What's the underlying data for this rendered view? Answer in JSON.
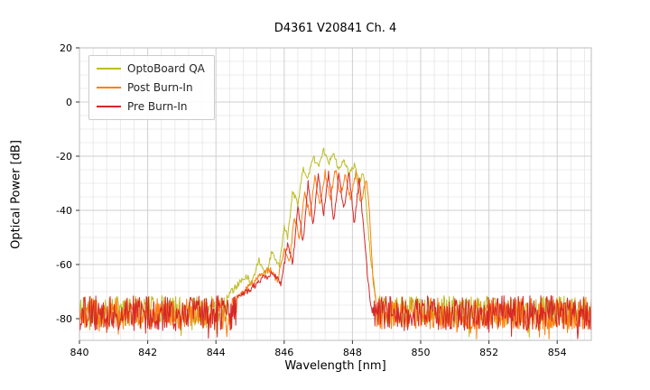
{
  "chart_data": {
    "type": "line",
    "title": "D4361 V20841 Ch. 4",
    "xlabel": "Wavelength [nm]",
    "ylabel": "Optical Power [dB]",
    "xlim": [
      840,
      855
    ],
    "ylim": [
      -88,
      20
    ],
    "xticks": [
      840,
      842,
      844,
      846,
      848,
      850,
      852,
      854
    ],
    "yticks": [
      20,
      0,
      -20,
      -40,
      -60,
      -80
    ],
    "minor_x_step": 0.4,
    "minor_y_step": 5,
    "grid": true,
    "legend_position": "upper left",
    "series": [
      {
        "name": "OptoBoard QA",
        "color": "#bcbd22",
        "noise_floor_mean": -77.0,
        "noise_amp": 5.5,
        "seed": 11,
        "peak_keypoints": [
          [
            844.3,
            -72
          ],
          [
            844.6,
            -68
          ],
          [
            844.9,
            -64
          ],
          [
            845.05,
            -67
          ],
          [
            845.25,
            -58
          ],
          [
            845.45,
            -64
          ],
          [
            845.65,
            -55
          ],
          [
            845.85,
            -61
          ],
          [
            846.0,
            -46
          ],
          [
            846.1,
            -50
          ],
          [
            846.25,
            -33
          ],
          [
            846.4,
            -38
          ],
          [
            846.55,
            -24
          ],
          [
            846.7,
            -28
          ],
          [
            846.85,
            -20
          ],
          [
            847.0,
            -24
          ],
          [
            847.15,
            -17.5
          ],
          [
            847.3,
            -23
          ],
          [
            847.45,
            -19
          ],
          [
            847.6,
            -25
          ],
          [
            847.75,
            -21
          ],
          [
            847.9,
            -27
          ],
          [
            848.05,
            -23
          ],
          [
            848.2,
            -30
          ],
          [
            848.32,
            -26
          ],
          [
            848.45,
            -45
          ],
          [
            848.55,
            -60
          ],
          [
            848.68,
            -72
          ]
        ]
      },
      {
        "name": "Post Burn-In",
        "color": "#ff7f0e",
        "noise_floor_mean": -78.0,
        "noise_amp": 6.0,
        "seed": 23,
        "peak_keypoints": [
          [
            844.6,
            -72
          ],
          [
            845.0,
            -68
          ],
          [
            845.3,
            -64
          ],
          [
            845.6,
            -62
          ],
          [
            845.8,
            -66
          ],
          [
            846.0,
            -55
          ],
          [
            846.15,
            -60
          ],
          [
            846.3,
            -42
          ],
          [
            846.45,
            -50
          ],
          [
            846.6,
            -33
          ],
          [
            846.75,
            -42
          ],
          [
            846.9,
            -28
          ],
          [
            847.05,
            -38
          ],
          [
            847.2,
            -26
          ],
          [
            847.35,
            -36
          ],
          [
            847.5,
            -25
          ],
          [
            847.65,
            -34
          ],
          [
            847.8,
            -27
          ],
          [
            847.95,
            -36
          ],
          [
            848.1,
            -26
          ],
          [
            848.25,
            -38
          ],
          [
            848.4,
            -28
          ],
          [
            848.5,
            -40
          ],
          [
            848.6,
            -65
          ],
          [
            848.7,
            -76
          ]
        ]
      },
      {
        "name": "Pre Burn-In",
        "color": "#d62728",
        "noise_floor_mean": -78.0,
        "noise_amp": 6.5,
        "seed": 37,
        "peak_keypoints": [
          [
            844.6,
            -73
          ],
          [
            845.0,
            -69
          ],
          [
            845.4,
            -65
          ],
          [
            845.7,
            -63
          ],
          [
            845.9,
            -68
          ],
          [
            846.1,
            -52
          ],
          [
            846.25,
            -60
          ],
          [
            846.4,
            -38
          ],
          [
            846.55,
            -52
          ],
          [
            846.7,
            -30
          ],
          [
            846.85,
            -45
          ],
          [
            847.0,
            -27
          ],
          [
            847.15,
            -42
          ],
          [
            847.3,
            -26
          ],
          [
            847.45,
            -44
          ],
          [
            847.6,
            -27
          ],
          [
            847.75,
            -40
          ],
          [
            847.9,
            -26
          ],
          [
            848.05,
            -45
          ],
          [
            848.2,
            -28
          ],
          [
            848.35,
            -50
          ],
          [
            848.45,
            -65
          ],
          [
            848.55,
            -76
          ]
        ]
      }
    ]
  }
}
